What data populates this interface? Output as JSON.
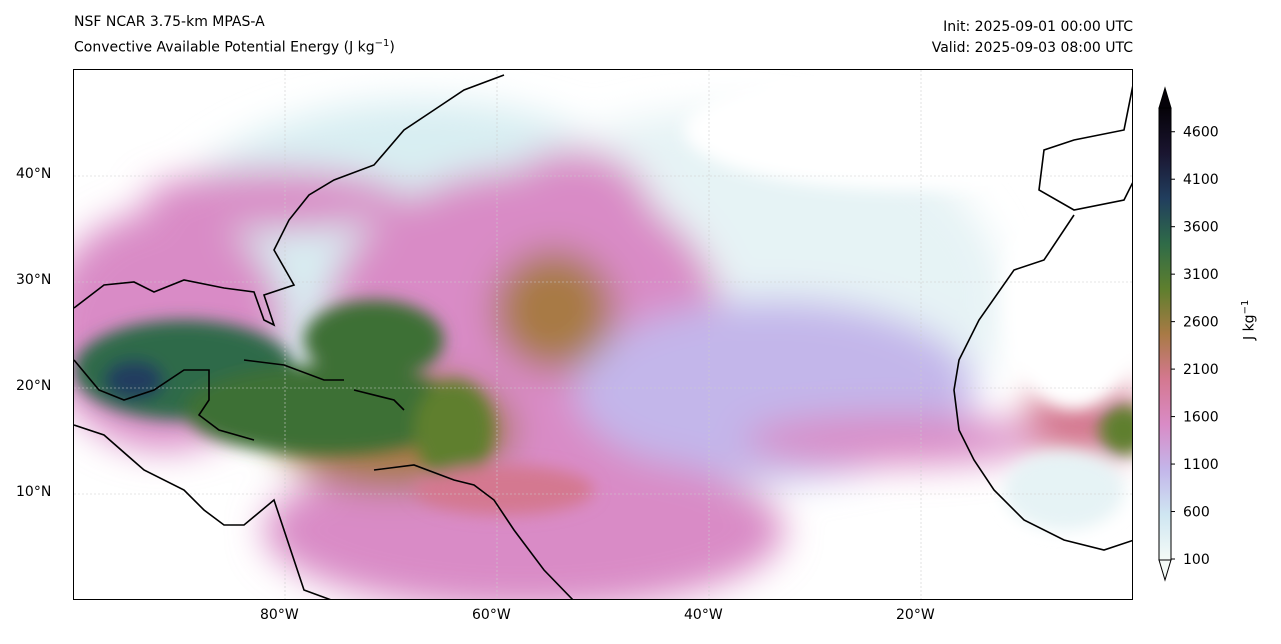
{
  "title_left": {
    "line1": "NSF NCAR 3.75-km MPAS-A",
    "line2_main": "Convective Available Potential Energy (J kg",
    "line2_sup": "−1",
    "line2_end": ")"
  },
  "title_right": {
    "init": "Init: 2025-09-01 00:00 UTC",
    "valid": "Valid: 2025-09-03 08:00 UTC"
  },
  "map": {
    "extent": {
      "lon": [
        -100,
        0
      ],
      "lat": [
        0,
        50
      ]
    },
    "lat_labels": [
      "40°N",
      "30°N",
      "20°N",
      "10°N"
    ],
    "lon_labels": [
      "80°W",
      "60°W",
      "40°W",
      "20°W"
    ]
  },
  "colorbar": {
    "label_main": "J kg",
    "label_sup": "−1",
    "ticks": [
      "4600",
      "4100",
      "3600",
      "3100",
      "2600",
      "2100",
      "1600",
      "1100",
      "600",
      "100"
    ],
    "range": [
      100,
      4850
    ],
    "colors": [
      "#f4fbf7",
      "#cfe6f2",
      "#c3b6ea",
      "#d98bc6",
      "#d47890",
      "#a87a45",
      "#5e7f2e",
      "#2f6b48",
      "#213e5e",
      "#1a1530",
      "#050208"
    ]
  }
}
